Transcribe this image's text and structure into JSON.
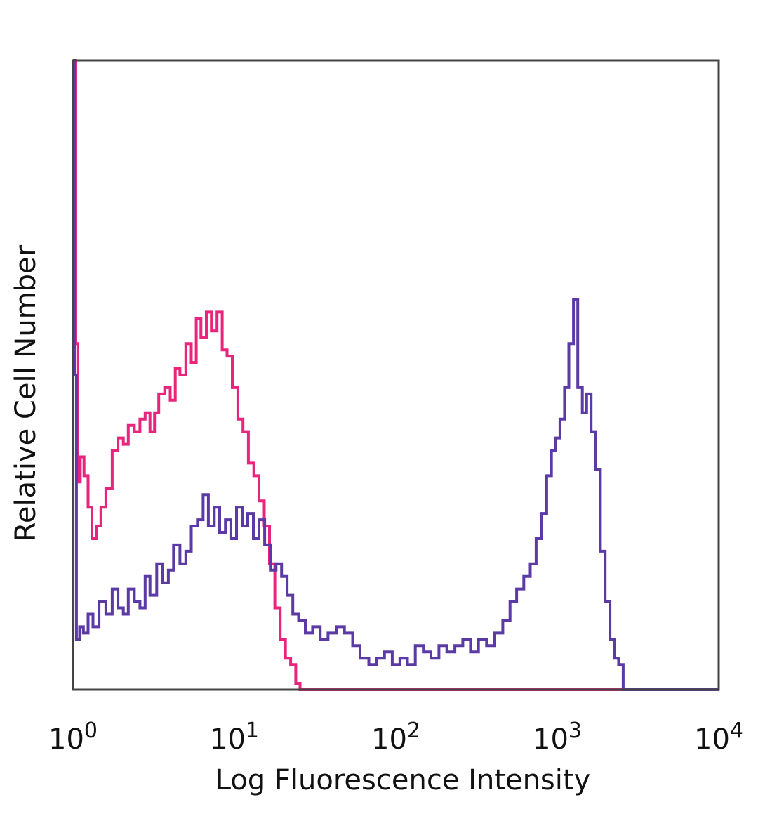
{
  "chart_data": {
    "type": "line",
    "title": "",
    "xlabel": "Log Fluorescence Intensity",
    "ylabel": "Relative Cell Number",
    "x_scale": "log",
    "xlim": [
      1,
      10000
    ],
    "ylim": [
      0,
      100
    ],
    "x_ticks": [
      {
        "base": "10",
        "exp": "0"
      },
      {
        "base": "10",
        "exp": "1"
      },
      {
        "base": "10",
        "exp": "2"
      },
      {
        "base": "10",
        "exp": "3"
      },
      {
        "base": "10",
        "exp": "4"
      }
    ],
    "grid": false,
    "legend": "none",
    "series": [
      {
        "color": "#e8247c",
        "x": [
          1.0,
          1.03,
          1.07,
          1.11,
          1.17,
          1.24,
          1.31,
          1.4,
          1.49,
          1.6,
          1.75,
          1.9,
          2.05,
          2.2,
          2.4,
          2.6,
          2.8,
          3.0,
          3.2,
          3.4,
          3.7,
          4.0,
          4.3,
          4.6,
          5.0,
          5.4,
          5.8,
          6.2,
          6.7,
          7.2,
          7.8,
          8.4,
          9.0,
          9.7,
          10.5,
          11.3,
          12.2,
          13.2,
          14.2,
          15.3,
          16.5,
          17.8,
          19.2,
          20.7,
          22.3,
          24.0,
          25.5,
          100,
          1000,
          10000
        ],
        "y": [
          100,
          55,
          33,
          37,
          34,
          29,
          24,
          26,
          29,
          32,
          38,
          40,
          39,
          42,
          41,
          43,
          44,
          41,
          44,
          47,
          48,
          46,
          51,
          50,
          55,
          52,
          59,
          56,
          60,
          57,
          60,
          54,
          53,
          48,
          43,
          41,
          36,
          34,
          30,
          26,
          20,
          13,
          8,
          5,
          4,
          1,
          0,
          0,
          0,
          0
        ]
      },
      {
        "color": "#5b3aa6",
        "x": [
          1.0,
          1.02,
          1.05,
          1.1,
          1.16,
          1.24,
          1.33,
          1.45,
          1.6,
          1.75,
          1.9,
          2.05,
          2.2,
          2.4,
          2.6,
          2.8,
          3.0,
          3.3,
          3.6,
          3.9,
          4.2,
          4.6,
          5.0,
          5.4,
          5.9,
          6.4,
          6.9,
          7.5,
          8.1,
          8.8,
          9.5,
          10.3,
          11.2,
          12.1,
          13.1,
          14.2,
          15.4,
          16.7,
          18.1,
          19.6,
          21.2,
          23.0,
          25.0,
          27.5,
          30.5,
          34.0,
          38.0,
          43.0,
          48.0,
          54.0,
          60.0,
          68.0,
          76.0,
          85.0,
          95.0,
          106.0,
          118.0,
          132.0,
          148.0,
          165.0,
          185.0,
          207.0,
          232.0,
          260.0,
          290.0,
          325.0,
          365.0,
          410.0,
          460.0,
          510.0,
          560.0,
          620.0,
          680.0,
          740.0,
          800.0,
          860.0,
          920.0,
          980.0,
          1040.0,
          1110.0,
          1180.0,
          1260.0,
          1340.0,
          1430.0,
          1520.0,
          1620.0,
          1730.0,
          1850.0,
          1980.0,
          2120.0,
          2260.0,
          2400.0,
          2560.0,
          2700.0,
          10000.0
        ],
        "y": [
          100,
          50,
          8,
          10,
          9,
          12,
          10,
          14,
          12,
          16,
          13,
          12,
          16,
          14,
          13,
          18,
          15,
          20,
          17,
          19,
          23,
          20,
          22,
          26,
          27,
          31,
          26,
          29,
          25,
          27,
          24,
          29,
          26,
          28,
          24,
          27,
          23,
          19,
          20,
          18,
          15,
          12,
          11,
          9,
          10,
          8,
          9,
          10,
          9,
          7,
          5,
          4,
          5,
          6,
          4,
          5,
          4,
          7,
          6,
          5,
          7,
          6,
          7,
          8,
          6,
          8,
          7,
          9,
          11,
          14,
          16,
          18,
          20,
          24,
          28,
          34,
          38,
          40,
          43,
          48,
          55,
          62,
          48,
          44,
          47,
          41,
          35,
          22,
          14,
          8,
          5,
          4,
          0,
          0,
          0
        ]
      }
    ]
  }
}
